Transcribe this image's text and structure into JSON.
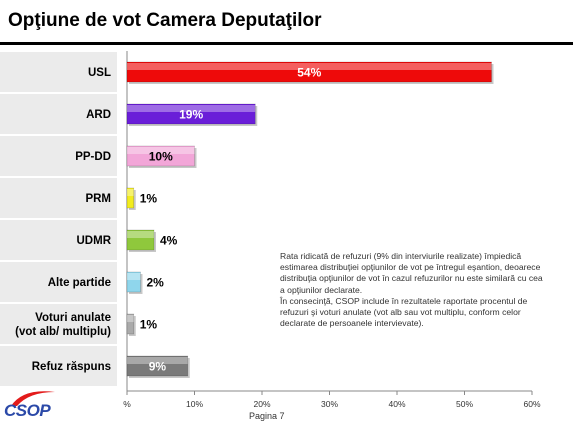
{
  "title": "Opţiune de vot Camera Deputaţilor",
  "chart_data": {
    "type": "bar",
    "orientation": "horizontal",
    "categories": [
      "USL",
      "ARD",
      "PP-DD",
      "PRM",
      "UDMR",
      "Alte partide",
      "Voturi anulate (vot alb/ multiplu)",
      "Refuz răspuns"
    ],
    "category_lines": [
      [
        "USL"
      ],
      [
        "ARD"
      ],
      [
        "PP-DD"
      ],
      [
        "PRM"
      ],
      [
        "UDMR"
      ],
      [
        "Alte partide"
      ],
      [
        "Voturi anulate",
        "(vot alb/ multiplu)"
      ],
      [
        "Refuz răspuns"
      ]
    ],
    "values": [
      54,
      19,
      10,
      1,
      4,
      2,
      1,
      9
    ],
    "labels": [
      "54%",
      "19%",
      "10%",
      "1%",
      "4%",
      "2%",
      "1%",
      "9%"
    ],
    "colors": [
      "#ee0a0a",
      "#6a1ed8",
      "#f2a6d8",
      "#f2ec1e",
      "#8fc83c",
      "#8fd6ec",
      "#aaaaaa",
      "#7a7a7a"
    ],
    "label_colors": [
      "#ffffff",
      "#ffffff",
      "#000000",
      "#000000",
      "#000000",
      "#000000",
      "#000000",
      "#ffffff"
    ],
    "xlim": [
      0,
      60
    ],
    "xticks": [
      0,
      10,
      20,
      30,
      40,
      50,
      60
    ],
    "xtick_labels": [
      "%",
      "10%",
      "20%",
      "30%",
      "40%",
      "50%",
      "60%"
    ],
    "grid": false
  },
  "note": {
    "line1": "Rata ridicată de refuzuri (9% din interviurile realizate) împiedică estimarea distribuţiei opţiunilor de vot pe întregul eşantion, deoarece distribuţia opţiunilor de vot în cazul refuzurilor nu este similară cu cea a opţiunilor declarate.",
    "line2": "În consecinţă, CSOP include în rezultatele raportate procentul de refuzuri şi voturi anulate (vot alb sau vot multiplu, conform celor declarate de persoanele intervievate)."
  },
  "logo": "CSOP",
  "page_label": "Pagina 7"
}
